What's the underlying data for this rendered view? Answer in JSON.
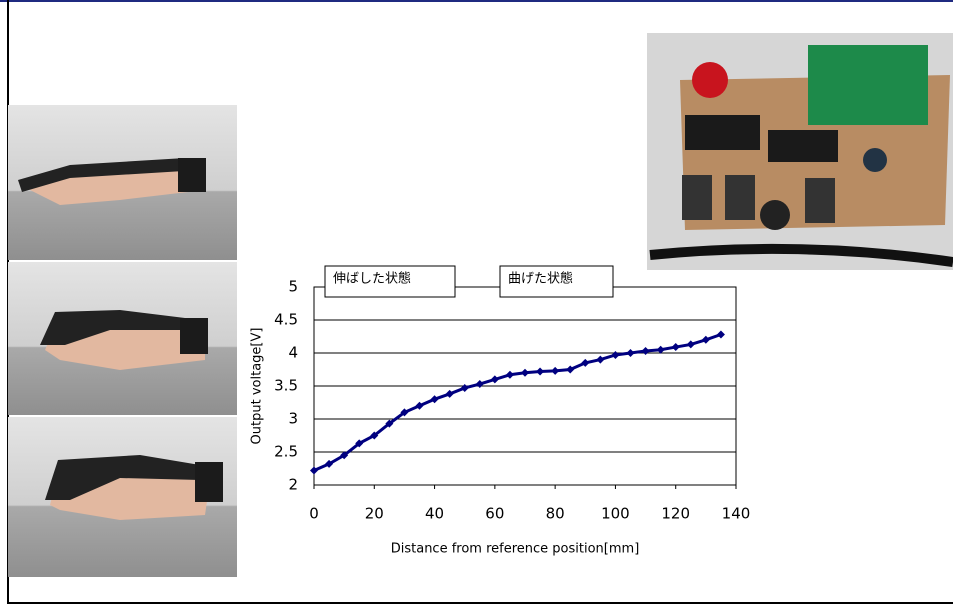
{
  "chart_data": {
    "type": "line",
    "x_label": "Distance from reference position[mm]",
    "y_label": "Output voltage[V]",
    "annotations": [
      "伸ばした状態",
      "曲げた状態"
    ],
    "x": [
      0,
      5,
      10,
      15,
      20,
      25,
      30,
      35,
      40,
      45,
      50,
      55,
      60,
      65,
      70,
      75,
      80,
      85,
      90,
      95,
      100,
      105,
      110,
      115,
      120,
      125,
      130,
      135
    ],
    "series": [
      {
        "color": "#000080",
        "values": [
          2.22,
          2.32,
          2.45,
          2.63,
          2.75,
          2.93,
          3.1,
          3.2,
          3.3,
          3.38,
          3.47,
          3.53,
          3.6,
          3.67,
          3.7,
          3.72,
          3.73,
          3.75,
          3.85,
          3.9,
          3.97,
          4.0,
          4.03,
          4.05,
          4.09,
          4.13,
          4.2,
          4.28
        ]
      }
    ],
    "xlim": [
      0,
      140
    ],
    "xticks": [
      0,
      20,
      40,
      60,
      80,
      100,
      120,
      140
    ],
    "ylim": [
      2,
      5
    ],
    "yticks": [
      2,
      2.5,
      3,
      3.5,
      4,
      4.5,
      5
    ],
    "grid": true
  }
}
